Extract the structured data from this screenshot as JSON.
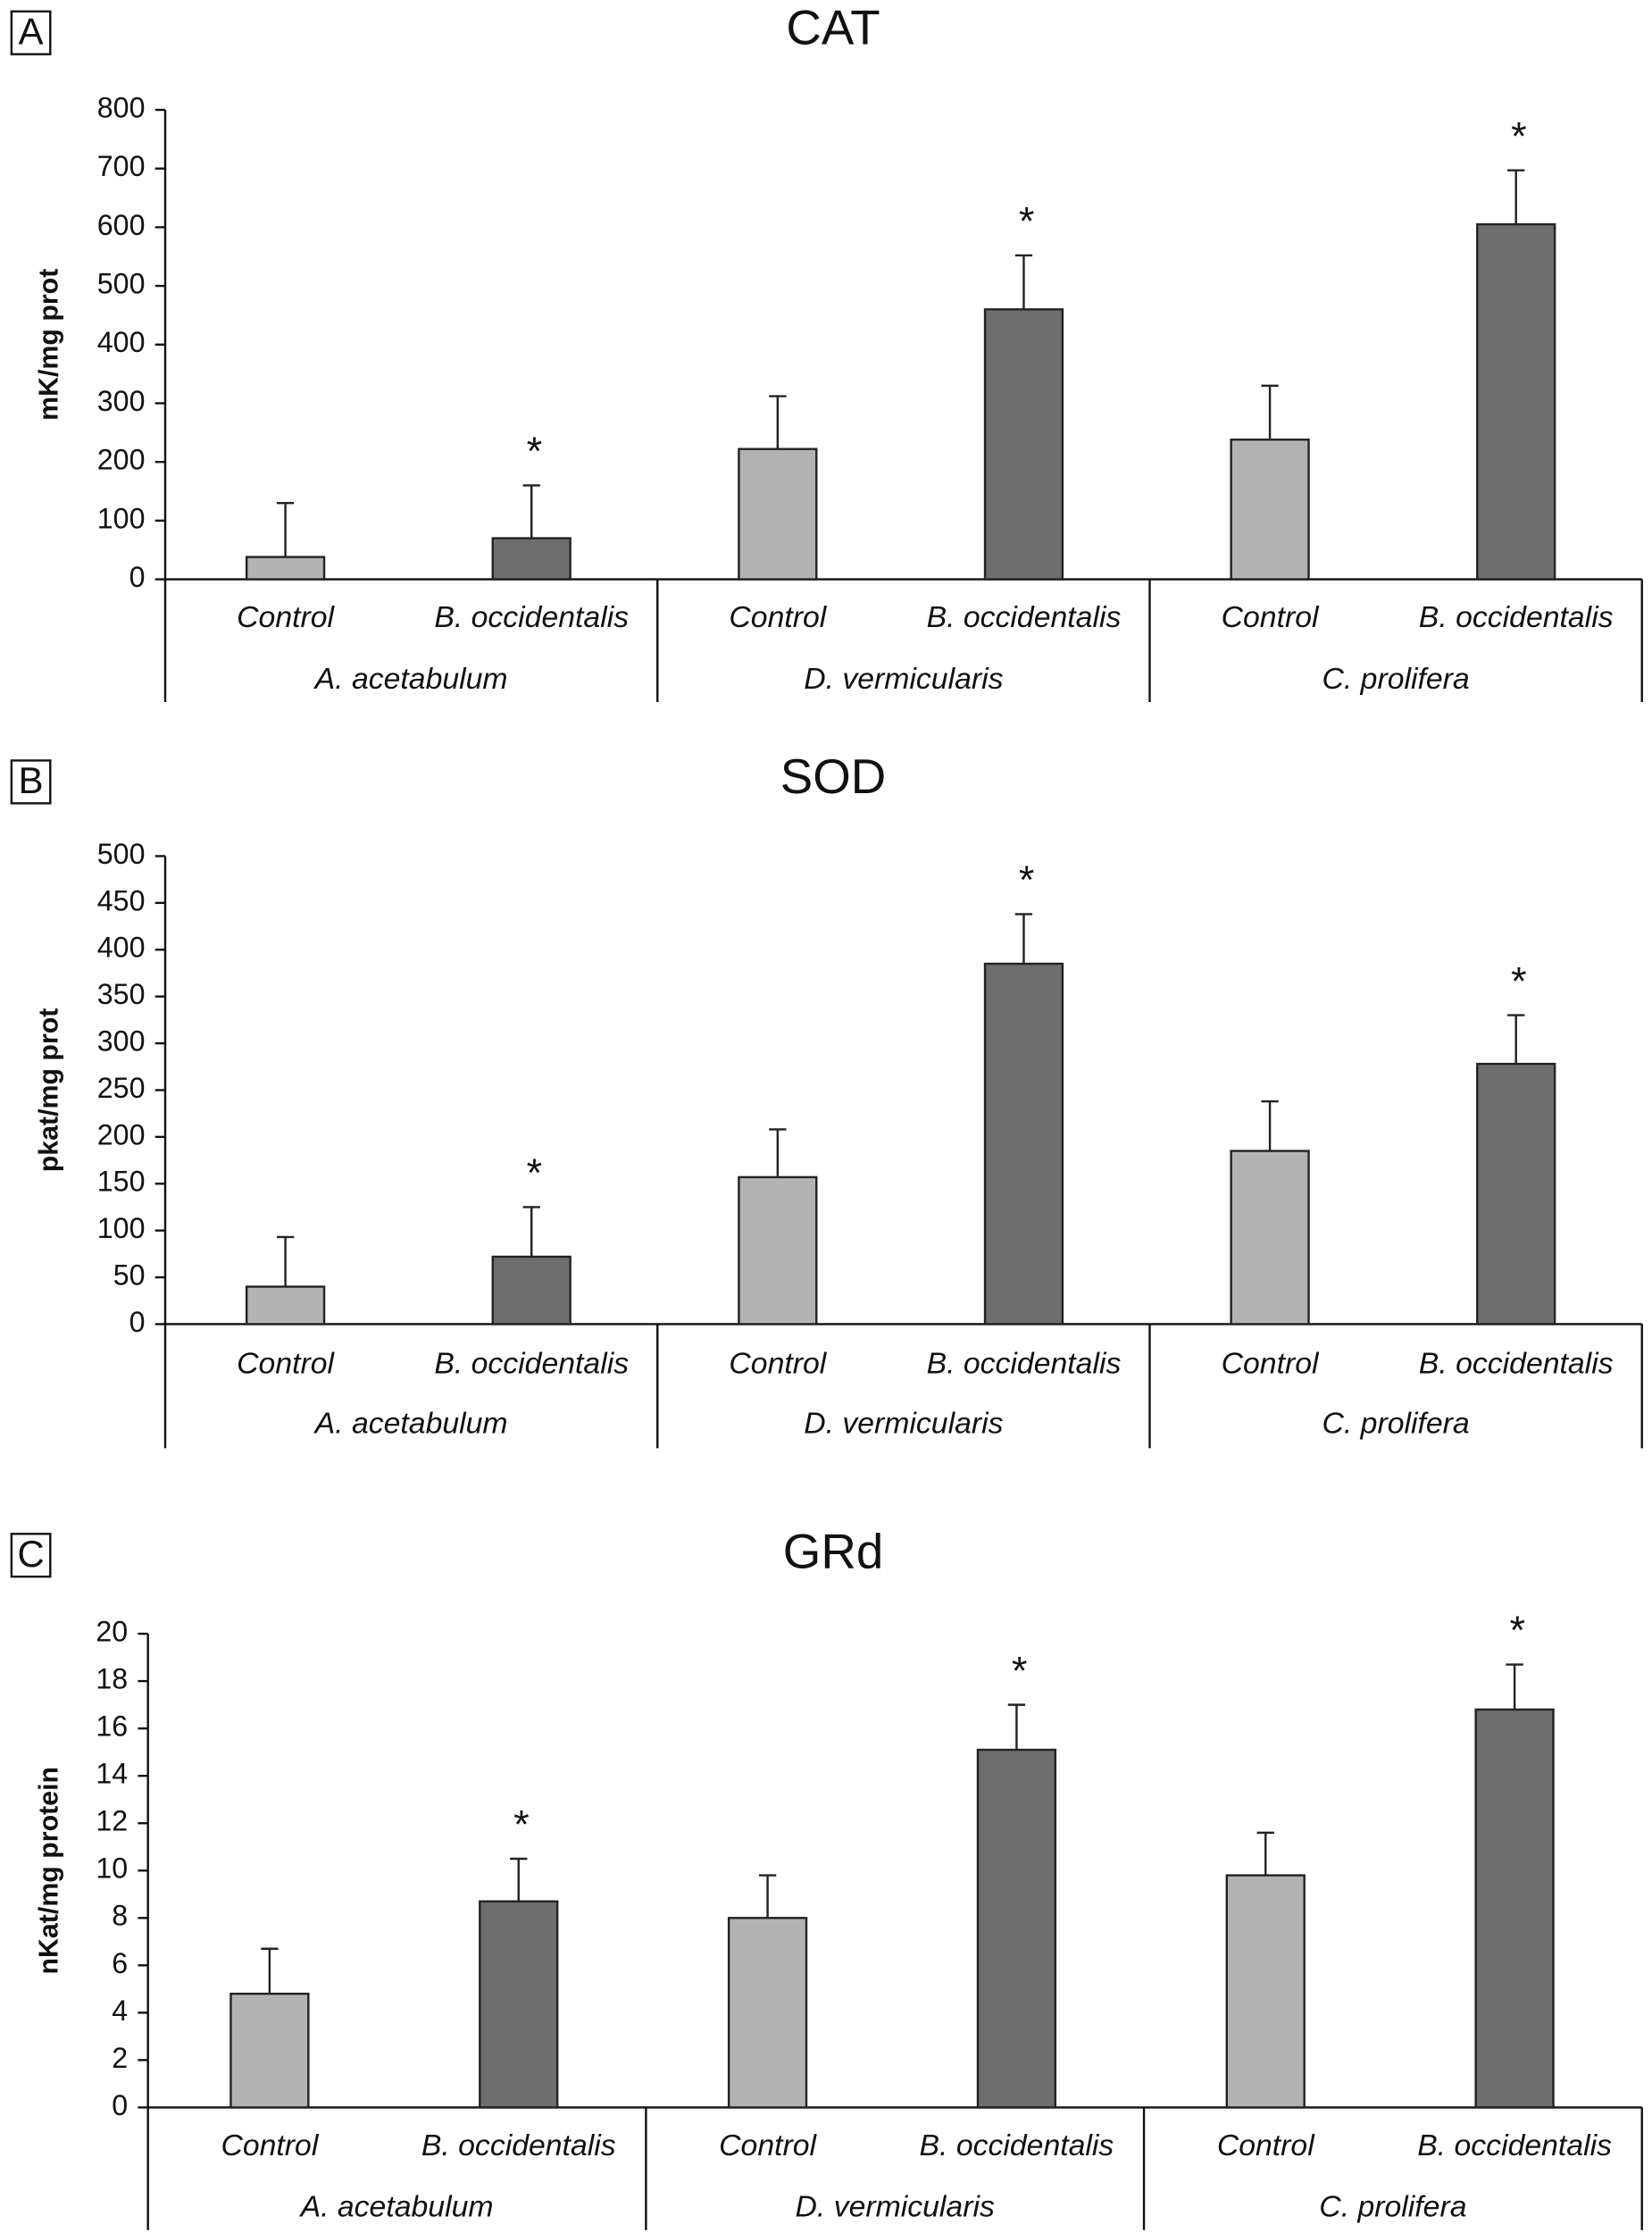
{
  "chart_data": [
    {
      "type": "bar",
      "panel": "A",
      "title": "CAT",
      "ylabel": "mK/mg prot",
      "categories": [
        "Control",
        "B. occidentalis",
        "Control",
        "B. occidentalis",
        "Control",
        "B. occidentalis"
      ],
      "groups": [
        "A. acetabulum",
        "D. vermicularis",
        "C. prolifera"
      ],
      "values": [
        38,
        70,
        222,
        460,
        238,
        605
      ],
      "errors": [
        92,
        90,
        90,
        92,
        92,
        92
      ],
      "annotations": [
        null,
        "*",
        null,
        "*",
        null,
        "*"
      ],
      "colors": [
        "#b3b3b3",
        "#6e6e6e",
        "#b3b3b3",
        "#6e6e6e",
        "#b3b3b3",
        "#6e6e6e"
      ],
      "ylim": [
        0,
        800
      ],
      "yticks": [
        0,
        100,
        200,
        300,
        400,
        500,
        600,
        700,
        800
      ]
    },
    {
      "type": "bar",
      "panel": "B",
      "title": "SOD",
      "ylabel": "pkat/mg prot",
      "categories": [
        "Control",
        "B. occidentalis",
        "Control",
        "B. occidentalis",
        "Control",
        "B. occidentalis"
      ],
      "groups": [
        "A. acetabulum",
        "D. vermicularis",
        "C. prolifera"
      ],
      "values": [
        40,
        72,
        157,
        385,
        185,
        278
      ],
      "errors": [
        53,
        53,
        51,
        53,
        53,
        52
      ],
      "annotations": [
        null,
        "*",
        null,
        "*",
        null,
        "*"
      ],
      "colors": [
        "#b3b3b3",
        "#6e6e6e",
        "#b3b3b3",
        "#6e6e6e",
        "#b3b3b3",
        "#6e6e6e"
      ],
      "ylim": [
        0,
        500
      ],
      "yticks": [
        0,
        50,
        100,
        150,
        200,
        250,
        300,
        350,
        400,
        450,
        500
      ]
    },
    {
      "type": "bar",
      "panel": "C",
      "title": "GRd",
      "ylabel": "nKat/mg protein",
      "categories": [
        "Control",
        "B. occidentalis",
        "Control",
        "B. occidentalis",
        "Control",
        "B. occidentalis"
      ],
      "groups": [
        "A. acetabulum",
        "D. vermicularis",
        "C. prolifera"
      ],
      "values": [
        4.8,
        8.7,
        8.0,
        15.1,
        9.8,
        16.8
      ],
      "errors": [
        1.9,
        1.8,
        1.8,
        1.9,
        1.8,
        1.9
      ],
      "annotations": [
        null,
        "*",
        null,
        "*",
        null,
        "*"
      ],
      "colors": [
        "#b3b3b3",
        "#6e6e6e",
        "#b3b3b3",
        "#6e6e6e",
        "#b3b3b3",
        "#6e6e6e"
      ],
      "ylim": [
        0,
        20
      ],
      "yticks": [
        0,
        2,
        4,
        6,
        8,
        10,
        12,
        14,
        16,
        18,
        20
      ]
    }
  ]
}
